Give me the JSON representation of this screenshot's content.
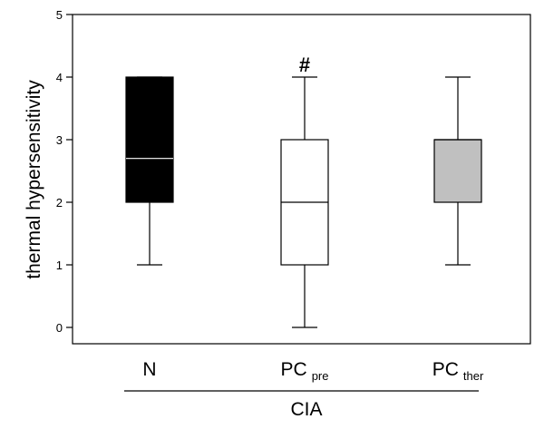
{
  "chart_data": {
    "type": "box",
    "ylabel": "thermal hypersensitivity",
    "ylim": [
      0,
      5
    ],
    "yticks": [
      "0",
      "1",
      "2",
      "3",
      "4",
      "5"
    ],
    "group_label": "CIA",
    "categories": [
      {
        "main": "N",
        "sub": ""
      },
      {
        "main": "PC",
        "sub": "pre"
      },
      {
        "main": "PC",
        "sub": "ther"
      }
    ],
    "boxes": [
      {
        "whisker_low": 1,
        "q1": 2,
        "median": 2.7,
        "q3": 4,
        "whisker_high": 4,
        "fill": "#000000",
        "median_color": "#ffffff"
      },
      {
        "whisker_low": 0,
        "q1": 1,
        "median": 2,
        "q3": 3,
        "whisker_high": 4,
        "fill": "#ffffff",
        "median_color": "#000000",
        "annotation": "#"
      },
      {
        "whisker_low": 1,
        "q1": 2,
        "median": 3,
        "q3": 3,
        "whisker_high": 4,
        "fill": "#c0c0c0",
        "median_color": "#000000"
      }
    ]
  }
}
